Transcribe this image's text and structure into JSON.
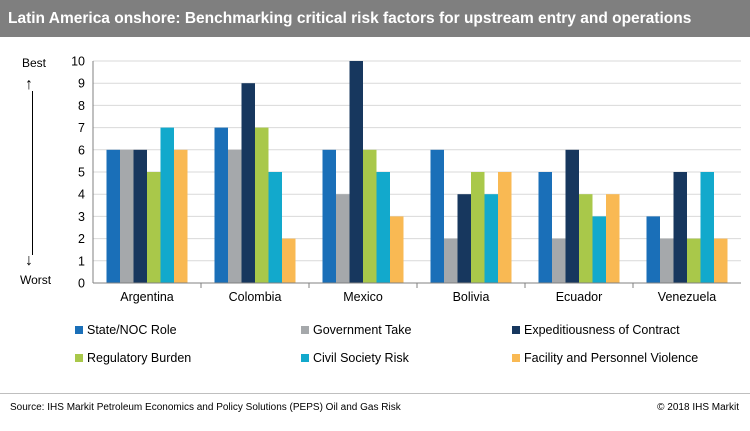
{
  "title": "Latin America onshore: Benchmarking critical risk factors for upstream entry and operations",
  "axis_top_label": "Best",
  "axis_bottom_label": "Worst",
  "source": "Source: IHS Markit Petroleum Economics and Policy Solutions (PEPS) Oil and Gas Risk",
  "copyright": "© 2018 IHS Markit",
  "chart_data": {
    "type": "bar",
    "title": "Latin America onshore: Benchmarking critical risk factors for upstream entry and operations",
    "xlabel": "",
    "ylabel": "",
    "ylim": [
      0,
      10
    ],
    "yticks": [
      "0",
      "1",
      "2",
      "3",
      "4",
      "5",
      "6",
      "7",
      "8",
      "9",
      "10"
    ],
    "grid": true,
    "legend_position": "bottom",
    "categories": [
      "Argentina",
      "Colombia",
      "Mexico",
      "Bolivia",
      "Ecuador",
      "Venezuela"
    ],
    "series": [
      {
        "name": "State/NOC Role",
        "color": "#1a6fb8",
        "values": [
          6,
          7,
          6,
          6,
          5,
          3
        ]
      },
      {
        "name": "Government Take",
        "color": "#a5a8ab",
        "values": [
          6,
          6,
          4,
          2,
          2,
          2
        ]
      },
      {
        "name": "Expeditiousness of Contract",
        "color": "#17375e",
        "values": [
          6,
          9,
          10,
          4,
          6,
          5
        ]
      },
      {
        "name": "Regulatory Burden",
        "color": "#a9c84a",
        "values": [
          5,
          7,
          6,
          5,
          4,
          2
        ]
      },
      {
        "name": "Civil Society Risk",
        "color": "#12a9cc",
        "values": [
          7,
          5,
          5,
          4,
          3,
          5
        ]
      },
      {
        "name": "Facility and Personnel Violence",
        "color": "#f9b953",
        "values": [
          6,
          2,
          3,
          5,
          4,
          2
        ]
      }
    ]
  }
}
